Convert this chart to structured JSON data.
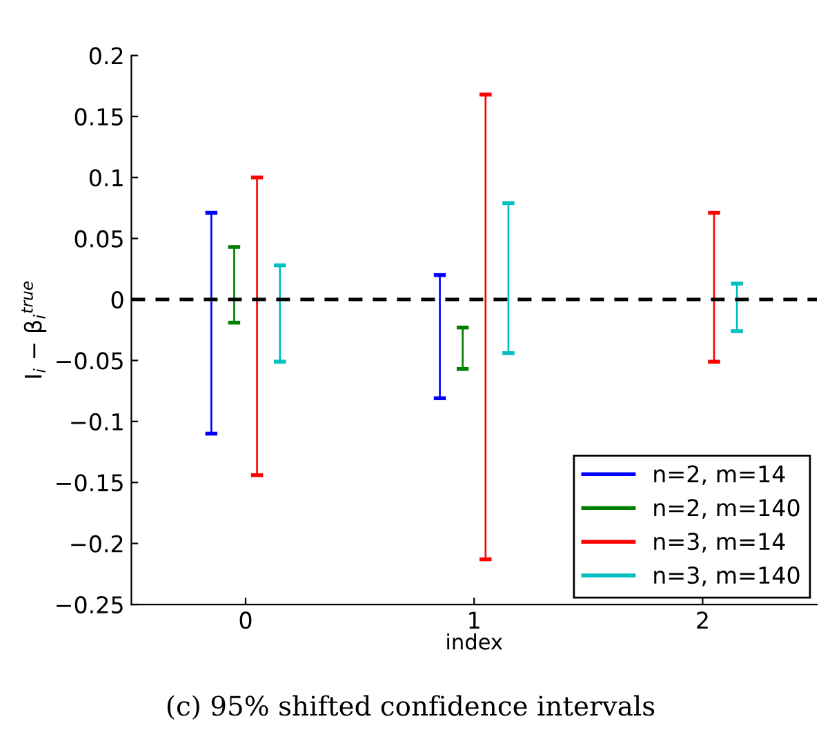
{
  "chart_data": {
    "type": "bar",
    "xlabel": "index",
    "ylabel": "I$_{i}$ − β$_{i}$$^{true}$",
    "categories": [
      "0",
      "1",
      "2"
    ],
    "series": [
      {
        "name": "n=2, m=14",
        "color": "#0000ff",
        "base": [
          -0.11,
          -0.081,
          null
        ],
        "values": [
          0.181,
          0.101,
          null
        ]
      },
      {
        "name": "n=2, m=140",
        "color": "#008000",
        "base": [
          -0.019,
          -0.057,
          null
        ],
        "values": [
          0.062,
          0.034,
          null
        ]
      },
      {
        "name": "n=3, m=14",
        "color": "#ff0000",
        "base": [
          -0.144,
          -0.213,
          -0.051
        ],
        "values": [
          0.244,
          0.381,
          0.122
        ]
      },
      {
        "name": "n=3, m=140",
        "color": "#00bfbf",
        "base": [
          -0.051,
          -0.044,
          -0.026
        ],
        "values": [
          0.079,
          0.123,
          0.039
        ]
      }
    ],
    "ylim": [
      -0.25,
      0.2
    ],
    "yticks": [
      -0.25,
      -0.2,
      -0.15,
      -0.1,
      -0.05,
      0,
      0.05,
      0.1,
      0.15,
      0.2
    ],
    "ref_lines": [
      {
        "axis": "y",
        "value": 0,
        "color": "#000000",
        "line_style": "dashed"
      }
    ],
    "legend": "bottom right",
    "grid": false,
    "annotations": [
      "(c) 95% shifted confidence intervals"
    ]
  }
}
